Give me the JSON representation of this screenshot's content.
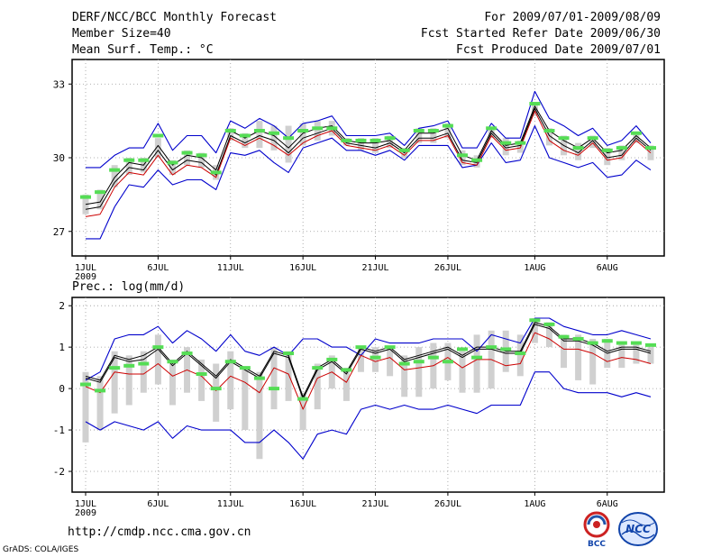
{
  "header": {
    "title": "DERF/NCC/BCC Monthly Forecast",
    "member_size": "Member Size=40",
    "variable": "Mean Surf. Temp.: °C",
    "period": "For 2009/07/01-2009/08/09",
    "started": "Fcst Started Refer Date 2009/06/30",
    "produced": "Fcst Produced Date 2009/07/01"
  },
  "footer": {
    "url": "http://cmdp.ncc.cma.gov.cn",
    "grads": "GrADS: COLA/IGES",
    "logo_left_text": "BCC",
    "logo_right_text": "NCC"
  },
  "colors": {
    "envelope": "#0000cc",
    "mean": "#000000",
    "median": "#cc0000",
    "bar": "#d0d0d0",
    "marker": "#55dd55"
  },
  "chart_data": [
    {
      "type": "line",
      "title": "Mean Surf. Temp.: °C",
      "ylim": [
        26,
        34
      ],
      "yticks": [
        27,
        30,
        33
      ],
      "days": 40,
      "xtick_days": [
        1,
        6,
        11,
        16,
        21,
        26,
        32,
        37
      ],
      "xtick_labels": [
        "1JUL",
        "6JUL",
        "11JUL",
        "16JUL",
        "21JUL",
        "26JUL",
        "1AUG",
        "6AUG"
      ],
      "year_label": "2009",
      "series": [
        {
          "name": "max",
          "values": [
            29.6,
            29.6,
            30.1,
            30.4,
            30.4,
            31.4,
            30.3,
            30.9,
            30.9,
            30.2,
            31.5,
            31.2,
            31.6,
            31.3,
            30.8,
            31.4,
            31.5,
            31.7,
            30.9,
            30.9,
            30.9,
            31.0,
            30.5,
            31.2,
            31.3,
            31.5,
            30.4,
            30.4,
            31.4,
            30.8,
            30.8,
            32.7,
            31.6,
            31.3,
            30.9,
            31.2,
            30.5,
            30.7,
            31.3,
            30.6
          ]
        },
        {
          "name": "ensemble_high",
          "values": [
            28.1,
            28.2,
            29.2,
            29.8,
            29.7,
            30.5,
            29.7,
            30.1,
            30.0,
            29.5,
            31.1,
            30.8,
            31.1,
            30.9,
            30.4,
            31.0,
            31.2,
            31.3,
            30.7,
            30.6,
            30.6,
            30.7,
            30.3,
            31.0,
            31.0,
            31.2,
            30.1,
            29.9,
            31.1,
            30.5,
            30.6,
            32.1,
            31.1,
            30.7,
            30.4,
            30.8,
            30.2,
            30.3,
            30.9,
            30.4
          ]
        },
        {
          "name": "mean",
          "values": [
            27.9,
            28.0,
            29.0,
            29.6,
            29.5,
            30.3,
            29.5,
            29.9,
            29.8,
            29.3,
            30.9,
            30.6,
            30.9,
            30.7,
            30.2,
            30.8,
            31.0,
            31.2,
            30.6,
            30.5,
            30.4,
            30.6,
            30.2,
            30.8,
            30.8,
            31.0,
            29.9,
            29.8,
            31.0,
            30.4,
            30.5,
            32.0,
            30.9,
            30.5,
            30.2,
            30.7,
            30.0,
            30.1,
            30.8,
            30.3
          ]
        },
        {
          "name": "median",
          "values": [
            27.6,
            27.7,
            28.8,
            29.4,
            29.3,
            30.1,
            29.3,
            29.7,
            29.6,
            29.2,
            30.8,
            30.5,
            30.8,
            30.5,
            30.1,
            30.6,
            30.9,
            31.1,
            30.5,
            30.4,
            30.3,
            30.5,
            30.1,
            30.7,
            30.7,
            30.9,
            29.8,
            29.7,
            30.9,
            30.3,
            30.4,
            31.9,
            30.7,
            30.3,
            30.1,
            30.6,
            29.9,
            30.0,
            30.7,
            30.2
          ]
        },
        {
          "name": "min",
          "values": [
            26.7,
            26.7,
            28.0,
            28.9,
            28.8,
            29.5,
            28.9,
            29.1,
            29.1,
            28.7,
            30.2,
            30.1,
            30.3,
            29.8,
            29.4,
            30.4,
            30.6,
            30.8,
            30.3,
            30.3,
            30.1,
            30.3,
            29.9,
            30.5,
            30.5,
            30.5,
            29.6,
            29.7,
            30.6,
            29.8,
            29.9,
            31.3,
            30.0,
            29.8,
            29.6,
            29.8,
            29.2,
            29.3,
            29.9,
            29.5
          ]
        },
        {
          "name": "bar_top",
          "values": [
            28.5,
            28.7,
            29.7,
            30.0,
            30.0,
            30.8,
            29.9,
            30.3,
            30.2,
            29.7,
            31.2,
            31.0,
            31.5,
            31.3,
            31.3,
            31.4,
            31.5,
            31.5,
            30.8,
            30.8,
            30.8,
            30.9,
            30.4,
            31.2,
            31.2,
            31.4,
            30.3,
            30.1,
            31.2,
            30.8,
            30.7,
            32.2,
            31.2,
            30.9,
            30.6,
            30.9,
            30.4,
            30.5,
            31.0,
            30.5
          ]
        },
        {
          "name": "bar_bottom",
          "values": [
            27.7,
            27.9,
            28.8,
            29.3,
            29.4,
            30.0,
            29.3,
            29.7,
            29.6,
            29.1,
            30.7,
            30.4,
            30.4,
            30.3,
            29.8,
            30.5,
            30.7,
            30.9,
            30.5,
            30.3,
            30.2,
            30.4,
            30.0,
            30.6,
            30.6,
            30.8,
            29.7,
            29.6,
            30.8,
            30.1,
            30.2,
            31.7,
            30.5,
            30.1,
            29.9,
            30.4,
            29.7,
            29.9,
            30.6,
            29.9
          ]
        },
        {
          "name": "marker",
          "values": [
            28.4,
            28.6,
            29.5,
            29.9,
            29.9,
            30.9,
            29.8,
            30.2,
            30.1,
            29.4,
            31.1,
            30.9,
            31.1,
            31.0,
            30.8,
            31.1,
            31.2,
            31.2,
            30.7,
            30.7,
            30.7,
            30.8,
            30.3,
            31.1,
            31.1,
            31.3,
            30.1,
            29.9,
            31.2,
            30.6,
            30.6,
            32.2,
            31.1,
            30.8,
            30.4,
            30.8,
            30.3,
            30.4,
            31.0,
            30.4
          ]
        }
      ]
    },
    {
      "type": "line",
      "title": "Prec.: log(mm/d)",
      "ylim": [
        -2.5,
        2.2
      ],
      "yticks": [
        -2,
        -1,
        0,
        1,
        2
      ],
      "days": 40,
      "xtick_days": [
        1,
        6,
        11,
        16,
        21,
        26,
        32,
        37
      ],
      "xtick_labels": [
        "1JUL",
        "6JUL",
        "11JUL",
        "16JUL",
        "21JUL",
        "26JUL",
        "1AUG",
        "6AUG"
      ],
      "year_label": "2009",
      "series": [
        {
          "name": "max",
          "values": [
            0.2,
            0.4,
            1.2,
            1.3,
            1.3,
            1.5,
            1.1,
            1.4,
            1.2,
            0.9,
            1.3,
            0.9,
            0.8,
            1.0,
            0.8,
            1.2,
            1.2,
            1.0,
            1.0,
            0.8,
            1.2,
            1.1,
            1.1,
            1.1,
            1.2,
            1.2,
            1.2,
            0.9,
            1.3,
            1.2,
            1.1,
            1.7,
            1.7,
            1.5,
            1.4,
            1.3,
            1.3,
            1.4,
            1.3,
            1.2
          ]
        },
        {
          "name": "ensemble_high",
          "values": [
            0.3,
            0.2,
            0.8,
            0.7,
            0.8,
            1.0,
            0.6,
            0.9,
            0.6,
            0.3,
            0.7,
            0.5,
            0.3,
            0.9,
            0.8,
            -0.2,
            0.5,
            0.7,
            0.4,
            1.0,
            0.9,
            1.0,
            0.7,
            0.8,
            0.9,
            1.0,
            0.8,
            1.0,
            1.0,
            0.9,
            0.9,
            1.6,
            1.5,
            1.2,
            1.2,
            1.1,
            0.9,
            1.0,
            1.0,
            0.9
          ]
        },
        {
          "name": "mean",
          "values": [
            0.25,
            0.15,
            0.75,
            0.65,
            0.7,
            0.95,
            0.55,
            0.85,
            0.55,
            0.25,
            0.65,
            0.45,
            0.25,
            0.85,
            0.75,
            -0.25,
            0.45,
            0.65,
            0.35,
            0.95,
            0.85,
            0.95,
            0.65,
            0.75,
            0.85,
            0.95,
            0.75,
            0.95,
            0.95,
            0.85,
            0.85,
            1.55,
            1.45,
            1.15,
            1.15,
            1.05,
            0.85,
            0.95,
            0.95,
            0.85
          ]
        },
        {
          "name": "median",
          "values": [
            0.05,
            -0.1,
            0.4,
            0.35,
            0.35,
            0.6,
            0.3,
            0.45,
            0.3,
            -0.05,
            0.3,
            0.15,
            -0.1,
            0.5,
            0.35,
            -0.5,
            0.25,
            0.4,
            0.15,
            0.8,
            0.65,
            0.75,
            0.45,
            0.5,
            0.55,
            0.75,
            0.5,
            0.7,
            0.7,
            0.55,
            0.6,
            1.35,
            1.2,
            0.95,
            0.95,
            0.85,
            0.65,
            0.75,
            0.7,
            0.6
          ]
        },
        {
          "name": "min",
          "values": [
            -0.8,
            -1.0,
            -0.8,
            -0.9,
            -1.0,
            -0.8,
            -1.2,
            -0.9,
            -1.0,
            -1.0,
            -1.0,
            -1.3,
            -1.3,
            -1.0,
            -1.3,
            -1.7,
            -1.1,
            -1.0,
            -1.1,
            -0.5,
            -0.4,
            -0.5,
            -0.4,
            -0.5,
            -0.5,
            -0.4,
            -0.5,
            -0.6,
            -0.4,
            -0.4,
            -0.4,
            0.4,
            0.4,
            0.0,
            -0.1,
            -0.1,
            -0.1,
            -0.2,
            -0.1,
            -0.2
          ]
        },
        {
          "name": "bar_top",
          "values": [
            0.4,
            0.3,
            0.9,
            0.8,
            0.9,
            1.3,
            0.7,
            1.0,
            0.7,
            0.6,
            0.9,
            0.5,
            0.4,
            1.0,
            0.9,
            -0.1,
            0.6,
            0.8,
            0.5,
            1.0,
            1.0,
            1.0,
            0.8,
            1.0,
            1.1,
            1.1,
            0.9,
            1.3,
            1.4,
            1.4,
            1.3,
            1.7,
            1.6,
            1.3,
            1.3,
            1.2,
            1.2,
            1.1,
            1.1,
            1.0
          ]
        },
        {
          "name": "bar_bottom",
          "values": [
            -1.3,
            -1.0,
            -0.6,
            -0.4,
            -0.1,
            0.1,
            -0.4,
            -0.1,
            -0.3,
            -0.8,
            -0.5,
            -1.0,
            -1.7,
            -0.5,
            -0.3,
            -1.0,
            -0.5,
            0.0,
            -0.3,
            0.4,
            0.4,
            0.3,
            -0.2,
            -0.2,
            0.0,
            0.2,
            -0.1,
            -0.1,
            0.0,
            0.4,
            0.3,
            1.1,
            1.0,
            0.5,
            0.2,
            0.1,
            0.5,
            0.5,
            0.6,
            0.6
          ]
        },
        {
          "name": "marker",
          "values": [
            0.1,
            -0.05,
            0.5,
            0.55,
            0.6,
            1.0,
            0.65,
            0.85,
            0.35,
            0.0,
            0.65,
            0.5,
            0.25,
            0.0,
            0.85,
            -0.25,
            0.5,
            0.7,
            0.45,
            1.0,
            0.75,
            1.0,
            0.6,
            0.65,
            0.75,
            0.65,
            0.95,
            0.75,
            1.0,
            0.95,
            0.85,
            1.65,
            1.55,
            1.25,
            1.2,
            1.1,
            1.15,
            1.1,
            1.1,
            1.05
          ]
        }
      ]
    }
  ]
}
